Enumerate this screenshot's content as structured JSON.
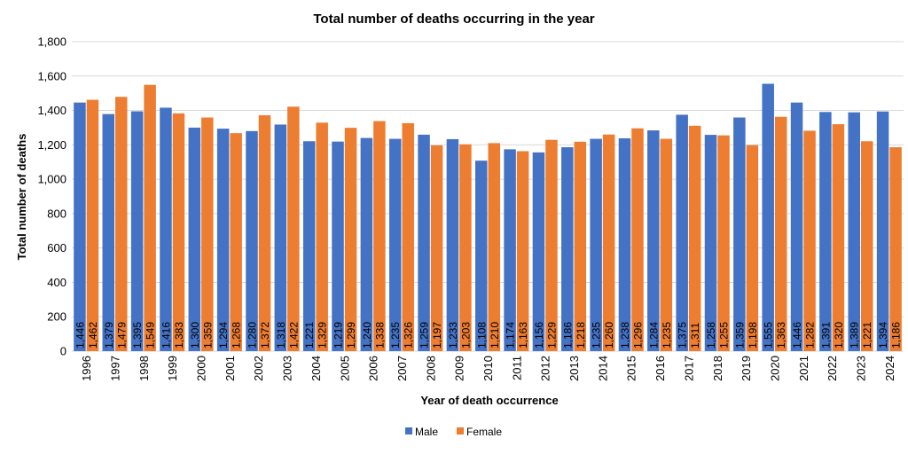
{
  "chart_data": {
    "type": "bar",
    "title": "Total number of deaths occurring in the year",
    "xlabel": "Year of death occurrence",
    "ylabel": "Total number of deaths",
    "ylim": [
      0,
      1800
    ],
    "yticks": [
      0,
      200,
      400,
      600,
      800,
      1000,
      1200,
      1400,
      1600,
      1800
    ],
    "ytick_labels": [
      "0",
      "200",
      "400",
      "600",
      "800",
      "1,000",
      "1,200",
      "1,400",
      "1,600",
      "1,800"
    ],
    "grid": true,
    "legend": "bottom",
    "categories": [
      "1996",
      "1997",
      "1998",
      "1999",
      "2000",
      "2001",
      "2002",
      "2003",
      "2004",
      "2005",
      "2006",
      "2007",
      "2008",
      "2009",
      "2010",
      "2011",
      "2012",
      "2013",
      "2014",
      "2015",
      "2016",
      "2017",
      "2018",
      "2019",
      "2020",
      "2021",
      "2022",
      "2023",
      "2024"
    ],
    "series": [
      {
        "name": "Male",
        "color": "#4472C4",
        "values": [
          1446,
          1379,
          1395,
          1416,
          1300,
          1294,
          1280,
          1318,
          1221,
          1219,
          1240,
          1235,
          1259,
          1233,
          1108,
          1174,
          1156,
          1186,
          1235,
          1238,
          1284,
          1375,
          1258,
          1359,
          1555,
          1446,
          1391,
          1389,
          1394
        ]
      },
      {
        "name": "Female",
        "color": "#ED7D31",
        "values": [
          1462,
          1479,
          1549,
          1383,
          1359,
          1268,
          1372,
          1422,
          1329,
          1299,
          1338,
          1326,
          1197,
          1203,
          1210,
          1163,
          1229,
          1218,
          1260,
          1296,
          1235,
          1311,
          1255,
          1198,
          1363,
          1282,
          1320,
          1221,
          1186
        ]
      }
    ]
  }
}
